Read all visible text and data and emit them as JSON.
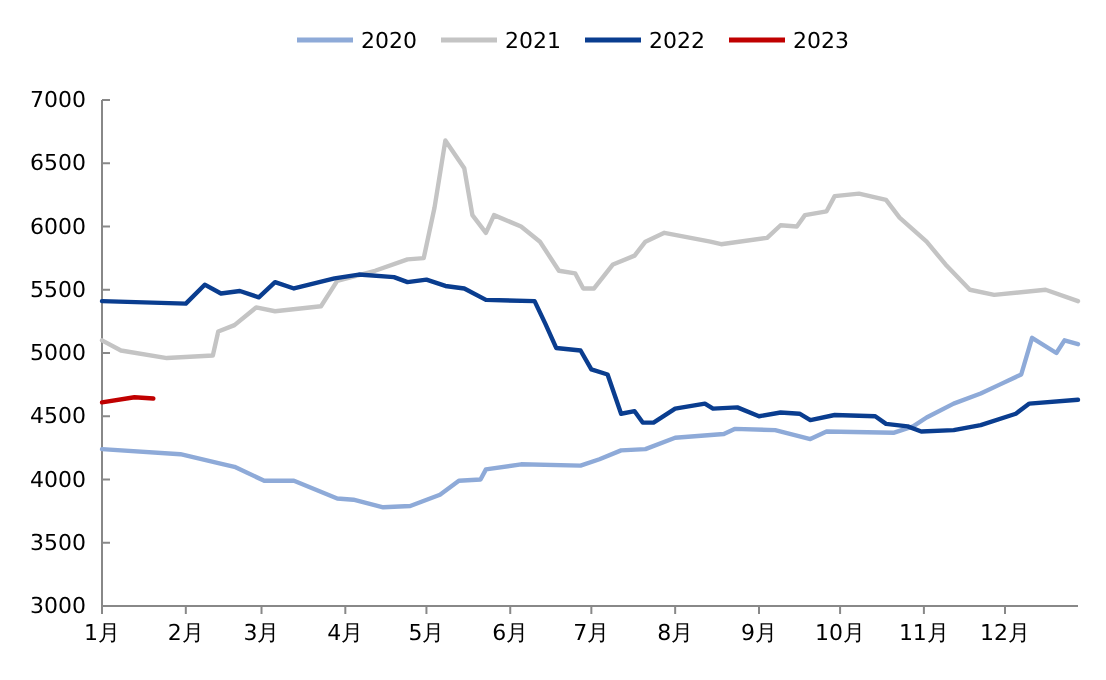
{
  "chart_data": {
    "type": "line",
    "legend": "top",
    "marker": "none",
    "line_style": "solid",
    "xlim": [
      "--01-01",
      "--12-28"
    ],
    "ylim": [
      3000,
      7000
    ],
    "yticks": [
      3000,
      3500,
      4000,
      4500,
      5000,
      5500,
      6000,
      6500,
      7000
    ],
    "xticks": [
      {
        "value": "--01-01",
        "label": "1月"
      },
      {
        "value": "--02-01",
        "label": "2月"
      },
      {
        "value": "--03-01",
        "label": "3月"
      },
      {
        "value": "--04-01",
        "label": "4月"
      },
      {
        "value": "--05-01",
        "label": "5月"
      },
      {
        "value": "--06-01",
        "label": "6月"
      },
      {
        "value": "--07-01",
        "label": "7月"
      },
      {
        "value": "--08-01",
        "label": "8月"
      },
      {
        "value": "--09-01",
        "label": "9月"
      },
      {
        "value": "--10-01",
        "label": "10月"
      },
      {
        "value": "--11-01",
        "label": "11月"
      },
      {
        "value": "--12-01",
        "label": "12月"
      }
    ],
    "series": [
      {
        "name": "2020",
        "color": "#8eaad8",
        "x": [
          "--01-01",
          "--01-30",
          "--02-15",
          "--02-19",
          "--03-02",
          "--03-13",
          "--03-29",
          "--04-04",
          "--04-15",
          "--04-25",
          "--05-06",
          "--05-13",
          "--05-21",
          "--05-23",
          "--06-05",
          "--06-27",
          "--07-04",
          "--07-12",
          "--07-21",
          "--08-01",
          "--08-19",
          "--08-23",
          "--09-07",
          "--09-20",
          "--09-26",
          "--10-21",
          "--10-28",
          "--11-02",
          "--11-12",
          "--11-22",
          "--11-29",
          "--12-07",
          "--12-11",
          "--12-20",
          "--12-23",
          "--12-28"
        ],
        "values": [
          4240,
          4200,
          4120,
          4100,
          3990,
          3990,
          3850,
          3840,
          3780,
          3790,
          3880,
          3990,
          4000,
          4080,
          4120,
          4110,
          4160,
          4230,
          4240,
          4330,
          4360,
          4400,
          4390,
          4320,
          4380,
          4370,
          4420,
          4490,
          4600,
          4680,
          4750,
          4830,
          5120,
          5000,
          5100,
          5070
        ]
      },
      {
        "name": "2021",
        "color": "#c4c4c4",
        "x": [
          "--01-01",
          "--01-08",
          "--01-25",
          "--02-11",
          "--02-13",
          "--02-19",
          "--02-27",
          "--03-06",
          "--03-23",
          "--03-29",
          "--04-12",
          "--04-24",
          "--04-30",
          "--05-04",
          "--05-08",
          "--05-15",
          "--05-18",
          "--05-23",
          "--05-26",
          "--06-05",
          "--06-12",
          "--06-19",
          "--06-25",
          "--06-28",
          "--07-02",
          "--07-09",
          "--07-17",
          "--07-21",
          "--07-28",
          "--08-14",
          "--08-18",
          "--09-04",
          "--09-09",
          "--09-15",
          "--09-18",
          "--09-26",
          "--09-29",
          "--10-08",
          "--10-18",
          "--10-23",
          "--11-02",
          "--11-09",
          "--11-18",
          "--11-27",
          "--12-16",
          "--12-28"
        ],
        "values": [
          5100,
          5020,
          4960,
          4980,
          5170,
          5220,
          5360,
          5330,
          5370,
          5570,
          5650,
          5740,
          5750,
          6150,
          6680,
          6460,
          6090,
          5950,
          6090,
          6000,
          5880,
          5650,
          5630,
          5510,
          5510,
          5700,
          5770,
          5880,
          5950,
          5880,
          5860,
          5910,
          6010,
          6000,
          6090,
          6120,
          6240,
          6260,
          6210,
          6070,
          5880,
          5700,
          5500,
          5460,
          5500,
          5410
        ]
      },
      {
        "name": "2022",
        "color": "#0a3d8f",
        "x": [
          "--01-01",
          "--02-01",
          "--02-08",
          "--02-14",
          "--02-21",
          "--02-28",
          "--03-06",
          "--03-13",
          "--03-28",
          "--04-06",
          "--04-19",
          "--04-24",
          "--05-01",
          "--05-08",
          "--05-15",
          "--05-23",
          "--06-10",
          "--06-14",
          "--06-18",
          "--06-27",
          "--07-01",
          "--07-07",
          "--07-12",
          "--07-17",
          "--07-20",
          "--07-24",
          "--08-01",
          "--08-12",
          "--08-15",
          "--08-24",
          "--09-01",
          "--09-09",
          "--09-16",
          "--09-20",
          "--09-29",
          "--10-14",
          "--10-18",
          "--10-26",
          "--10-31",
          "--11-12",
          "--11-22",
          "--12-05",
          "--12-10",
          "--12-28"
        ],
        "values": [
          5410,
          5390,
          5540,
          5470,
          5490,
          5440,
          5560,
          5510,
          5590,
          5620,
          5600,
          5560,
          5580,
          5530,
          5510,
          5420,
          5410,
          5230,
          5040,
          5020,
          4870,
          4830,
          4520,
          4540,
          4450,
          4450,
          4560,
          4600,
          4560,
          4570,
          4500,
          4530,
          4520,
          4470,
          4510,
          4500,
          4440,
          4420,
          4380,
          4390,
          4430,
          4520,
          4600,
          4630
        ]
      },
      {
        "name": "2023",
        "color": "#c00000",
        "x": [
          "--01-01",
          "--01-13",
          "--01-20"
        ],
        "values": [
          4610,
          4650,
          4640
        ]
      }
    ]
  }
}
